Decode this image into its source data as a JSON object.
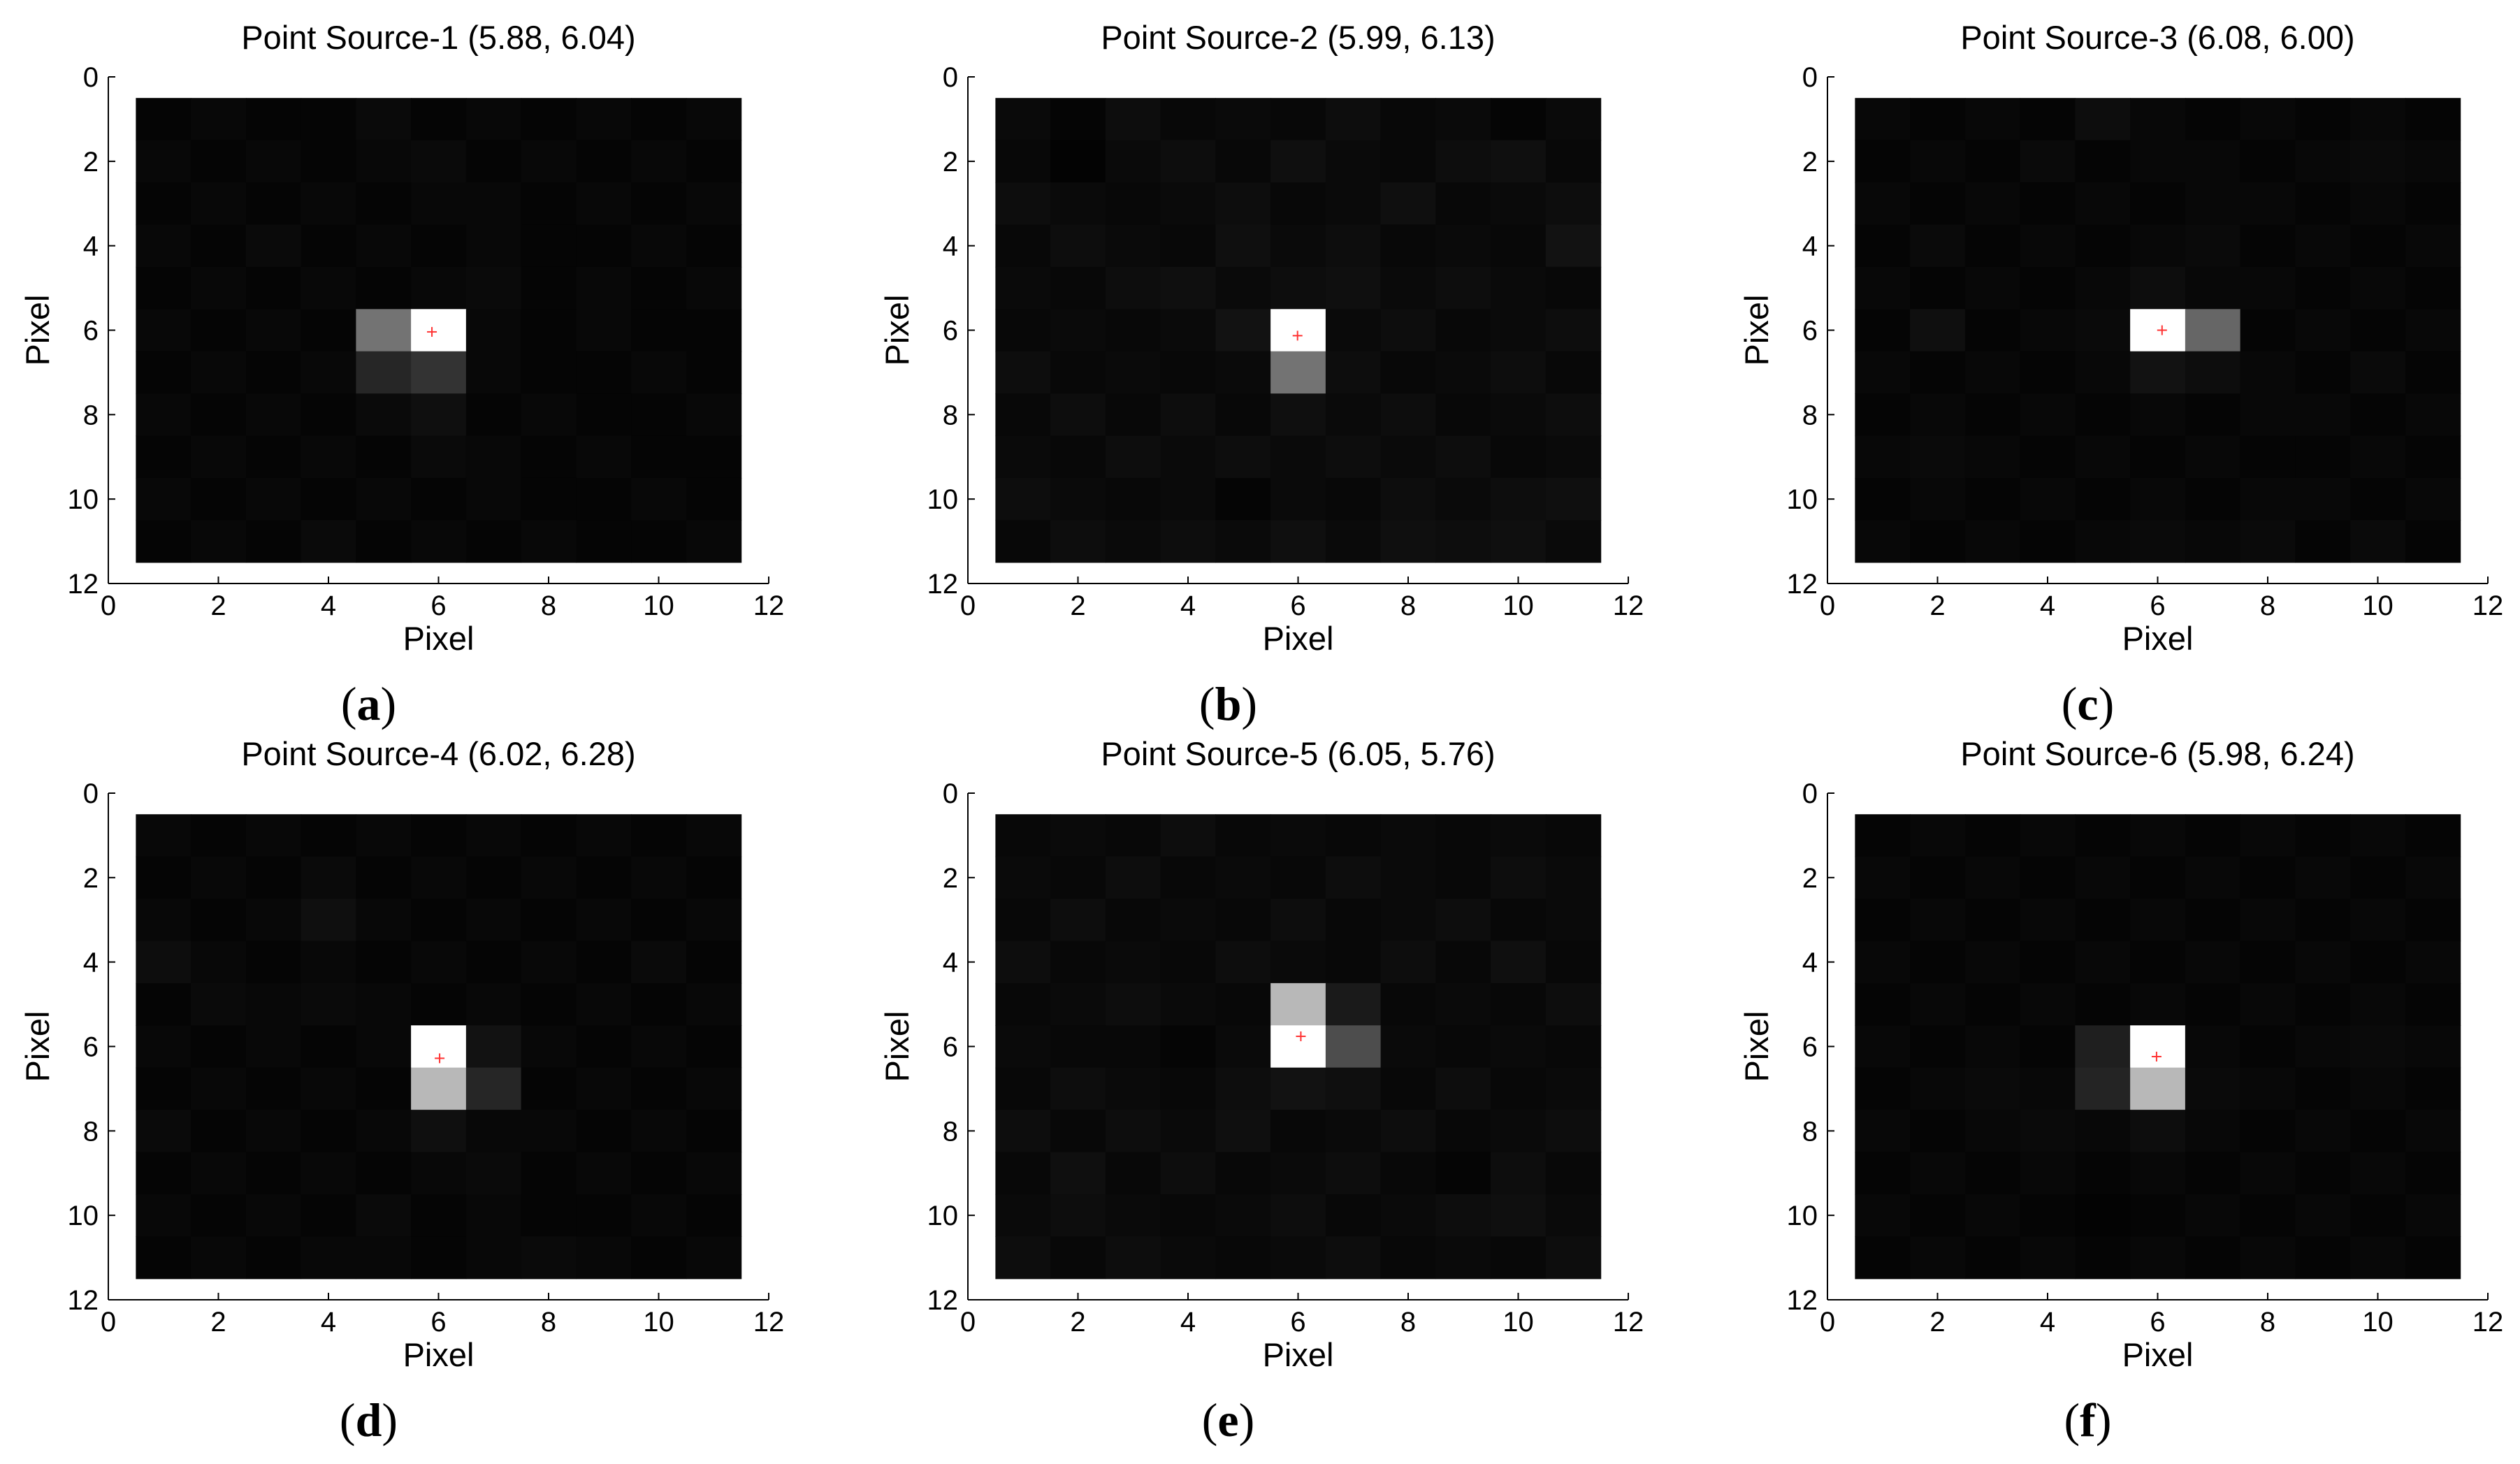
{
  "chart_data": [
    {
      "type": "heatmap",
      "panel_label": "a",
      "title": "Point Source-1 (5.88, 6.04)",
      "xlabel": "Pixel",
      "ylabel": "Pixel",
      "xlim": [
        0,
        12
      ],
      "ylim": [
        12,
        0
      ],
      "xticks": [
        0,
        2,
        4,
        6,
        8,
        10,
        12
      ],
      "yticks": [
        0,
        2,
        4,
        6,
        8,
        10,
        12
      ],
      "colormap": "gray",
      "grid": false,
      "values": [
        [
          0.02,
          0.03,
          0.02,
          0.02,
          0.04,
          0.02,
          0.03,
          0.02,
          0.03,
          0.02,
          0.03
        ],
        [
          0.03,
          0.02,
          0.03,
          0.02,
          0.03,
          0.04,
          0.02,
          0.03,
          0.02,
          0.03,
          0.02
        ],
        [
          0.02,
          0.03,
          0.02,
          0.03,
          0.02,
          0.03,
          0.03,
          0.02,
          0.03,
          0.02,
          0.03
        ],
        [
          0.03,
          0.02,
          0.04,
          0.02,
          0.03,
          0.02,
          0.03,
          0.02,
          0.02,
          0.03,
          0.02
        ],
        [
          0.02,
          0.03,
          0.02,
          0.03,
          0.02,
          0.03,
          0.04,
          0.02,
          0.03,
          0.02,
          0.03
        ],
        [
          0.03,
          0.02,
          0.03,
          0.02,
          0.45,
          1.0,
          0.03,
          0.02,
          0.03,
          0.02,
          0.02
        ],
        [
          0.02,
          0.03,
          0.02,
          0.03,
          0.15,
          0.2,
          0.03,
          0.02,
          0.02,
          0.03,
          0.02
        ],
        [
          0.03,
          0.02,
          0.03,
          0.02,
          0.04,
          0.06,
          0.02,
          0.03,
          0.02,
          0.02,
          0.03
        ],
        [
          0.02,
          0.03,
          0.02,
          0.03,
          0.02,
          0.04,
          0.03,
          0.02,
          0.03,
          0.02,
          0.02
        ],
        [
          0.03,
          0.02,
          0.03,
          0.02,
          0.03,
          0.02,
          0.03,
          0.02,
          0.02,
          0.03,
          0.02
        ],
        [
          0.02,
          0.03,
          0.02,
          0.04,
          0.02,
          0.03,
          0.02,
          0.03,
          0.02,
          0.02,
          0.03
        ]
      ],
      "marker": {
        "x": 5.88,
        "y": 6.04,
        "color": "#ff3333"
      }
    },
    {
      "type": "heatmap",
      "panel_label": "b",
      "title": "Point Source-2 (5.99, 6.13)",
      "xlabel": "Pixel",
      "ylabel": "Pixel",
      "xlim": [
        0,
        12
      ],
      "ylim": [
        12,
        0
      ],
      "xticks": [
        0,
        2,
        4,
        6,
        8,
        10,
        12
      ],
      "yticks": [
        0,
        2,
        4,
        6,
        8,
        10,
        12
      ],
      "colormap": "gray",
      "grid": false,
      "values": [
        [
          0.04,
          0.02,
          0.05,
          0.03,
          0.04,
          0.03,
          0.05,
          0.03,
          0.04,
          0.02,
          0.04
        ],
        [
          0.03,
          0.01,
          0.04,
          0.05,
          0.03,
          0.06,
          0.04,
          0.03,
          0.05,
          0.06,
          0.03
        ],
        [
          0.05,
          0.04,
          0.03,
          0.04,
          0.05,
          0.03,
          0.04,
          0.06,
          0.03,
          0.04,
          0.05
        ],
        [
          0.03,
          0.05,
          0.04,
          0.03,
          0.06,
          0.04,
          0.05,
          0.03,
          0.04,
          0.03,
          0.07
        ],
        [
          0.04,
          0.03,
          0.05,
          0.06,
          0.04,
          0.05,
          0.06,
          0.04,
          0.05,
          0.04,
          0.03
        ],
        [
          0.03,
          0.04,
          0.03,
          0.04,
          0.07,
          1.0,
          0.04,
          0.05,
          0.03,
          0.04,
          0.05
        ],
        [
          0.05,
          0.03,
          0.04,
          0.03,
          0.04,
          0.45,
          0.05,
          0.03,
          0.04,
          0.05,
          0.03
        ],
        [
          0.03,
          0.05,
          0.03,
          0.05,
          0.03,
          0.06,
          0.04,
          0.05,
          0.03,
          0.04,
          0.05
        ],
        [
          0.04,
          0.03,
          0.05,
          0.04,
          0.05,
          0.04,
          0.05,
          0.04,
          0.05,
          0.03,
          0.04
        ],
        [
          0.05,
          0.04,
          0.03,
          0.04,
          0.02,
          0.04,
          0.03,
          0.05,
          0.04,
          0.05,
          0.06
        ],
        [
          0.03,
          0.05,
          0.04,
          0.05,
          0.04,
          0.06,
          0.04,
          0.06,
          0.05,
          0.06,
          0.04
        ]
      ],
      "marker": {
        "x": 5.99,
        "y": 6.13,
        "color": "#ff3333"
      }
    },
    {
      "type": "heatmap",
      "panel_label": "c",
      "title": "Point Source-3 (6.08, 6.00)",
      "xlabel": "Pixel",
      "ylabel": "Pixel",
      "xlim": [
        0,
        12
      ],
      "ylim": [
        12,
        0
      ],
      "xticks": [
        0,
        2,
        4,
        6,
        8,
        10,
        12
      ],
      "yticks": [
        0,
        2,
        4,
        6,
        8,
        10,
        12
      ],
      "colormap": "gray",
      "grid": false,
      "values": [
        [
          0.03,
          0.02,
          0.03,
          0.02,
          0.05,
          0.03,
          0.02,
          0.03,
          0.02,
          0.03,
          0.02
        ],
        [
          0.02,
          0.03,
          0.02,
          0.04,
          0.02,
          0.03,
          0.03,
          0.02,
          0.03,
          0.04,
          0.03
        ],
        [
          0.03,
          0.02,
          0.03,
          0.02,
          0.03,
          0.02,
          0.03,
          0.03,
          0.02,
          0.03,
          0.02
        ],
        [
          0.02,
          0.04,
          0.02,
          0.03,
          0.02,
          0.03,
          0.04,
          0.02,
          0.03,
          0.02,
          0.03
        ],
        [
          0.03,
          0.02,
          0.03,
          0.02,
          0.03,
          0.05,
          0.03,
          0.03,
          0.02,
          0.03,
          0.02
        ],
        [
          0.02,
          0.06,
          0.02,
          0.03,
          0.04,
          1.0,
          0.4,
          0.02,
          0.03,
          0.02,
          0.03
        ],
        [
          0.03,
          0.02,
          0.03,
          0.02,
          0.03,
          0.07,
          0.05,
          0.03,
          0.02,
          0.04,
          0.02
        ],
        [
          0.02,
          0.03,
          0.02,
          0.03,
          0.02,
          0.03,
          0.02,
          0.03,
          0.03,
          0.02,
          0.03
        ],
        [
          0.03,
          0.04,
          0.03,
          0.02,
          0.03,
          0.02,
          0.03,
          0.02,
          0.02,
          0.03,
          0.02
        ],
        [
          0.02,
          0.03,
          0.02,
          0.03,
          0.02,
          0.03,
          0.02,
          0.03,
          0.03,
          0.02,
          0.03
        ],
        [
          0.03,
          0.02,
          0.03,
          0.02,
          0.03,
          0.04,
          0.03,
          0.04,
          0.02,
          0.04,
          0.02
        ]
      ],
      "marker": {
        "x": 6.08,
        "y": 6.0,
        "color": "#ff3333"
      }
    },
    {
      "type": "heatmap",
      "panel_label": "d",
      "title": "Point Source-4 (6.02, 6.28)",
      "xlabel": "Pixel",
      "ylabel": "Pixel",
      "xlim": [
        0,
        12
      ],
      "ylim": [
        12,
        0
      ],
      "xticks": [
        0,
        2,
        4,
        6,
        8,
        10,
        12
      ],
      "yticks": [
        0,
        2,
        4,
        6,
        8,
        10,
        12
      ],
      "colormap": "gray",
      "grid": false,
      "values": [
        [
          0.03,
          0.02,
          0.03,
          0.02,
          0.03,
          0.02,
          0.03,
          0.02,
          0.03,
          0.02,
          0.03
        ],
        [
          0.02,
          0.03,
          0.02,
          0.04,
          0.02,
          0.03,
          0.02,
          0.03,
          0.02,
          0.03,
          0.02
        ],
        [
          0.03,
          0.02,
          0.03,
          0.06,
          0.03,
          0.02,
          0.03,
          0.02,
          0.03,
          0.02,
          0.03
        ],
        [
          0.05,
          0.03,
          0.02,
          0.03,
          0.02,
          0.03,
          0.02,
          0.03,
          0.02,
          0.04,
          0.02
        ],
        [
          0.02,
          0.04,
          0.03,
          0.04,
          0.03,
          0.02,
          0.03,
          0.02,
          0.03,
          0.02,
          0.03
        ],
        [
          0.03,
          0.02,
          0.03,
          0.02,
          0.03,
          1.0,
          0.07,
          0.03,
          0.02,
          0.03,
          0.02
        ],
        [
          0.02,
          0.03,
          0.02,
          0.03,
          0.02,
          0.72,
          0.15,
          0.02,
          0.03,
          0.02,
          0.03
        ],
        [
          0.04,
          0.02,
          0.03,
          0.02,
          0.03,
          0.06,
          0.03,
          0.03,
          0.02,
          0.03,
          0.02
        ],
        [
          0.02,
          0.03,
          0.02,
          0.03,
          0.02,
          0.03,
          0.04,
          0.02,
          0.03,
          0.02,
          0.03
        ],
        [
          0.03,
          0.02,
          0.03,
          0.02,
          0.04,
          0.02,
          0.03,
          0.02,
          0.02,
          0.03,
          0.02
        ],
        [
          0.02,
          0.03,
          0.02,
          0.03,
          0.03,
          0.02,
          0.03,
          0.04,
          0.03,
          0.02,
          0.03
        ]
      ],
      "marker": {
        "x": 6.02,
        "y": 6.28,
        "color": "#ff3333"
      }
    },
    {
      "type": "heatmap",
      "panel_label": "e",
      "title": "Point Source-5 (6.05, 5.76)",
      "xlabel": "Pixel",
      "ylabel": "Pixel",
      "xlim": [
        0,
        12
      ],
      "ylim": [
        12,
        0
      ],
      "xticks": [
        0,
        2,
        4,
        6,
        8,
        10,
        12
      ],
      "yticks": [
        0,
        2,
        4,
        6,
        8,
        10,
        12
      ],
      "colormap": "gray",
      "grid": false,
      "values": [
        [
          0.03,
          0.04,
          0.03,
          0.05,
          0.03,
          0.04,
          0.03,
          0.04,
          0.03,
          0.04,
          0.03
        ],
        [
          0.04,
          0.03,
          0.05,
          0.03,
          0.04,
          0.03,
          0.05,
          0.04,
          0.03,
          0.05,
          0.04
        ],
        [
          0.03,
          0.05,
          0.03,
          0.04,
          0.03,
          0.05,
          0.03,
          0.04,
          0.05,
          0.03,
          0.04
        ],
        [
          0.05,
          0.03,
          0.04,
          0.03,
          0.05,
          0.04,
          0.03,
          0.05,
          0.03,
          0.06,
          0.03
        ],
        [
          0.03,
          0.04,
          0.05,
          0.04,
          0.03,
          0.72,
          0.1,
          0.03,
          0.04,
          0.03,
          0.05
        ],
        [
          0.04,
          0.03,
          0.03,
          0.02,
          0.04,
          1.0,
          0.3,
          0.04,
          0.03,
          0.04,
          0.03
        ],
        [
          0.03,
          0.05,
          0.04,
          0.03,
          0.05,
          0.07,
          0.06,
          0.03,
          0.05,
          0.03,
          0.04
        ],
        [
          0.05,
          0.03,
          0.05,
          0.04,
          0.06,
          0.03,
          0.04,
          0.05,
          0.03,
          0.04,
          0.05
        ],
        [
          0.03,
          0.06,
          0.03,
          0.05,
          0.03,
          0.04,
          0.05,
          0.03,
          0.02,
          0.05,
          0.03
        ],
        [
          0.04,
          0.05,
          0.04,
          0.03,
          0.04,
          0.05,
          0.03,
          0.04,
          0.05,
          0.06,
          0.04
        ],
        [
          0.05,
          0.03,
          0.05,
          0.04,
          0.03,
          0.04,
          0.05,
          0.03,
          0.04,
          0.03,
          0.05
        ]
      ],
      "marker": {
        "x": 6.05,
        "y": 5.76,
        "color": "#ff3333"
      }
    },
    {
      "type": "heatmap",
      "panel_label": "f",
      "title": "Point Source-6 (5.98, 6.24)",
      "xlabel": "Pixel",
      "ylabel": "Pixel",
      "xlim": [
        0,
        12
      ],
      "ylim": [
        12,
        0
      ],
      "xticks": [
        0,
        2,
        4,
        6,
        8,
        10,
        12
      ],
      "yticks": [
        0,
        2,
        4,
        6,
        8,
        10,
        12
      ],
      "colormap": "gray",
      "grid": false,
      "values": [
        [
          0.02,
          0.03,
          0.02,
          0.03,
          0.02,
          0.03,
          0.02,
          0.03,
          0.02,
          0.03,
          0.02
        ],
        [
          0.03,
          0.02,
          0.03,
          0.02,
          0.03,
          0.02,
          0.03,
          0.02,
          0.03,
          0.02,
          0.03
        ],
        [
          0.02,
          0.03,
          0.02,
          0.03,
          0.02,
          0.03,
          0.02,
          0.03,
          0.02,
          0.03,
          0.02
        ],
        [
          0.03,
          0.02,
          0.03,
          0.02,
          0.03,
          0.02,
          0.03,
          0.02,
          0.03,
          0.02,
          0.03
        ],
        [
          0.02,
          0.03,
          0.02,
          0.03,
          0.02,
          0.03,
          0.02,
          0.03,
          0.02,
          0.03,
          0.02
        ],
        [
          0.03,
          0.02,
          0.03,
          0.02,
          0.12,
          1.0,
          0.03,
          0.02,
          0.03,
          0.04,
          0.03
        ],
        [
          0.02,
          0.03,
          0.04,
          0.03,
          0.14,
          0.72,
          0.04,
          0.03,
          0.02,
          0.03,
          0.02
        ],
        [
          0.03,
          0.02,
          0.03,
          0.04,
          0.03,
          0.05,
          0.03,
          0.02,
          0.03,
          0.02,
          0.03
        ],
        [
          0.02,
          0.03,
          0.02,
          0.03,
          0.02,
          0.03,
          0.02,
          0.03,
          0.02,
          0.03,
          0.02
        ],
        [
          0.03,
          0.02,
          0.03,
          0.02,
          0.01,
          0.02,
          0.03,
          0.02,
          0.03,
          0.02,
          0.03
        ],
        [
          0.02,
          0.03,
          0.02,
          0.03,
          0.02,
          0.03,
          0.02,
          0.03,
          0.02,
          0.03,
          0.02
        ]
      ],
      "marker": {
        "x": 5.98,
        "y": 6.24,
        "color": "#ff3333"
      }
    }
  ]
}
